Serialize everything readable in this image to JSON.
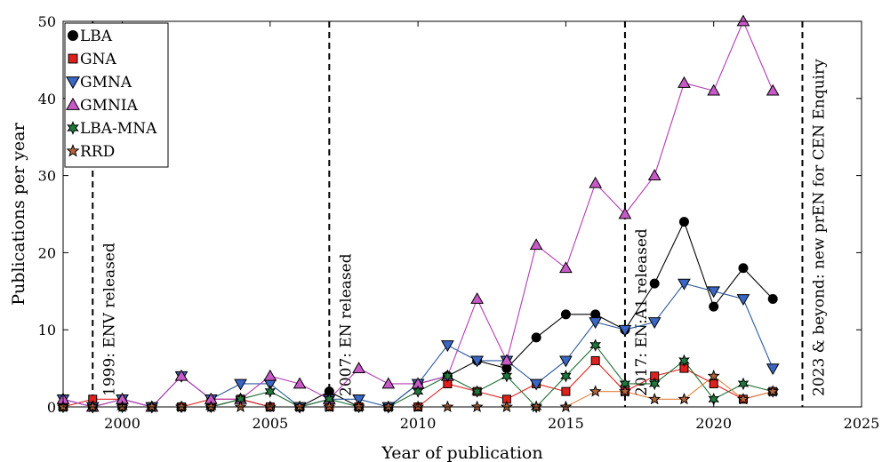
{
  "chart_data": {
    "type": "line",
    "title": "",
    "xlabel": "Year of publication",
    "ylabel": "Publications per year",
    "xlim": [
      1998,
      2025
    ],
    "ylim": [
      0,
      50
    ],
    "xticks": [
      2000,
      2005,
      2010,
      2015,
      2020,
      2025
    ],
    "yticks": [
      0,
      10,
      20,
      30,
      40,
      50
    ],
    "grid": false,
    "legend_position": "top-left",
    "x": [
      1998,
      1999,
      2000,
      2001,
      2002,
      2003,
      2004,
      2005,
      2006,
      2007,
      2008,
      2009,
      2010,
      2011,
      2012,
      2013,
      2014,
      2015,
      2016,
      2017,
      2018,
      2019,
      2020,
      2021,
      2022
    ],
    "series": [
      {
        "name": "LBA",
        "marker": "circle",
        "line_color": "#000000",
        "marker_fill": "#000000",
        "values": [
          0,
          0,
          0,
          0,
          0,
          0,
          1,
          0,
          0,
          2,
          0,
          0,
          3,
          4,
          6,
          5,
          9,
          12,
          12,
          10,
          16,
          24,
          13,
          18,
          14
        ]
      },
      {
        "name": "GNA",
        "marker": "square",
        "line_color": "#e0201c",
        "marker_fill": "#e0201c",
        "values": [
          0,
          1,
          1,
          0,
          0,
          1,
          1,
          0,
          0,
          0,
          0,
          0,
          0,
          3,
          2,
          1,
          3,
          2,
          6,
          2,
          4,
          5,
          3,
          1,
          2
        ]
      },
      {
        "name": "GMNA",
        "marker": "triangle-down",
        "line_color": "#2c5aa0",
        "marker_fill": "#3a66c4",
        "values": [
          1,
          0,
          1,
          0,
          4,
          1,
          3,
          3,
          0,
          1,
          1,
          0,
          3,
          8,
          6,
          6,
          3,
          6,
          11,
          10,
          11,
          16,
          15,
          14,
          5
        ]
      },
      {
        "name": "GMNIA",
        "marker": "triangle-up",
        "line_color": "#b43cb4",
        "marker_fill": "#c85ac8",
        "values": [
          1,
          0,
          1,
          0,
          4,
          1,
          1,
          4,
          3,
          1,
          5,
          3,
          3,
          4,
          14,
          6,
          21,
          18,
          29,
          25,
          30,
          42,
          41,
          50,
          41
        ]
      },
      {
        "name": "LBA-MNA",
        "marker": "star6",
        "line_color": "#1e6e32",
        "marker_fill": "#1e7a3c",
        "values": [
          0,
          0,
          0,
          0,
          0,
          0,
          1,
          2,
          0,
          1,
          0,
          0,
          2,
          4,
          2,
          4,
          0,
          4,
          8,
          3,
          3,
          6,
          1,
          3,
          2
        ]
      },
      {
        "name": "RRD",
        "marker": "star5",
        "line_color": "#e0803c",
        "marker_fill": "#b4643c",
        "values": [
          0,
          0,
          0,
          0,
          0,
          0,
          0,
          0,
          0,
          0,
          0,
          0,
          0,
          0,
          0,
          0,
          0,
          0,
          2,
          2,
          1,
          1,
          4,
          1,
          2
        ]
      }
    ],
    "annotations": [
      {
        "x": 1999,
        "text": "1999: ENV released"
      },
      {
        "x": 2007,
        "text": "2007: EN released"
      },
      {
        "x": 2017,
        "text": "2017: EN:A1 released"
      },
      {
        "x": 2023,
        "text": "2023 & beyond: new prEN for CEN Enquiry"
      }
    ]
  }
}
